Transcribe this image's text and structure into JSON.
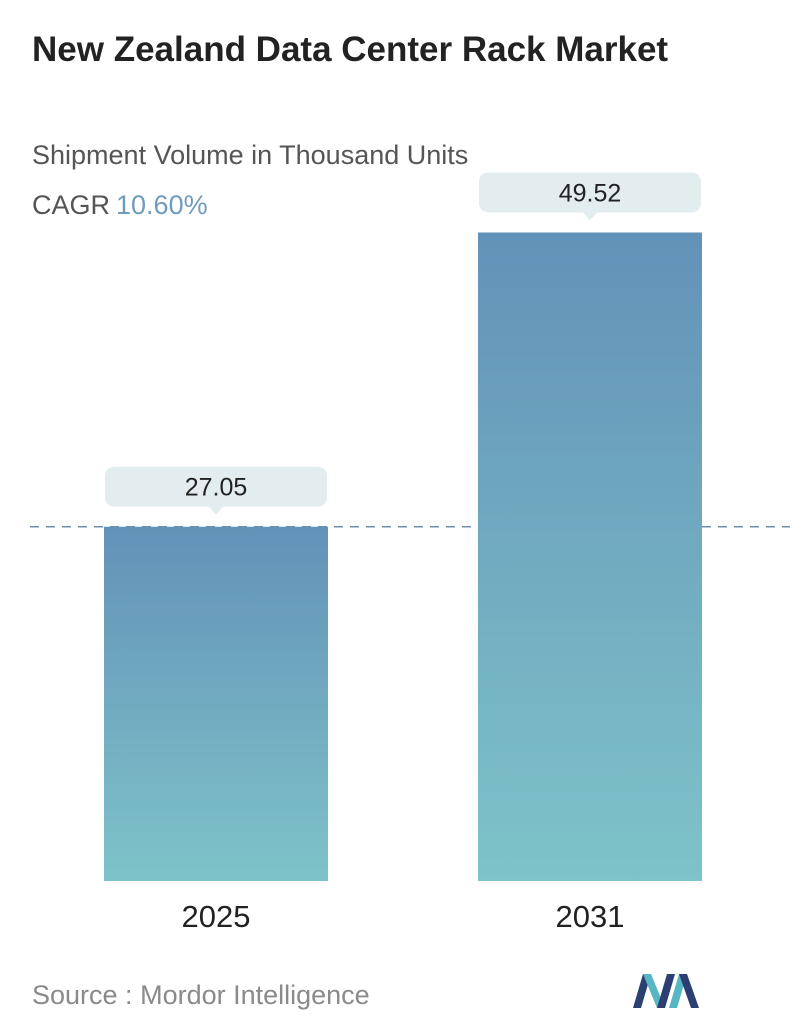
{
  "header": {
    "title": "New Zealand Data Center Rack Market",
    "subtitle": "Shipment Volume in Thousand Units",
    "cagr_label": "CAGR",
    "cagr_value": "10.60%"
  },
  "chart_data": {
    "type": "bar",
    "title": "New Zealand Data Center Rack Market",
    "subtitle": "Shipment Volume in Thousand Units",
    "categories": [
      "2025",
      "2031"
    ],
    "values": [
      27.05,
      49.52
    ],
    "value_labels": [
      "27.05",
      "49.52"
    ],
    "xlabel": "",
    "ylabel": "",
    "ylim": [
      0,
      52
    ],
    "grid": false,
    "reference_line": "dashed line at 2025 value",
    "colors": {
      "bar_top": "#6392b8",
      "bar_bottom": "#7ec3c9",
      "label_bg": "#e3ecef",
      "dash": "#6f8fae"
    }
  },
  "footer": {
    "source_label": "Source :",
    "source_name": "Mordor Intelligence",
    "logo_icon": "mordor-intelligence-logo-icon"
  }
}
